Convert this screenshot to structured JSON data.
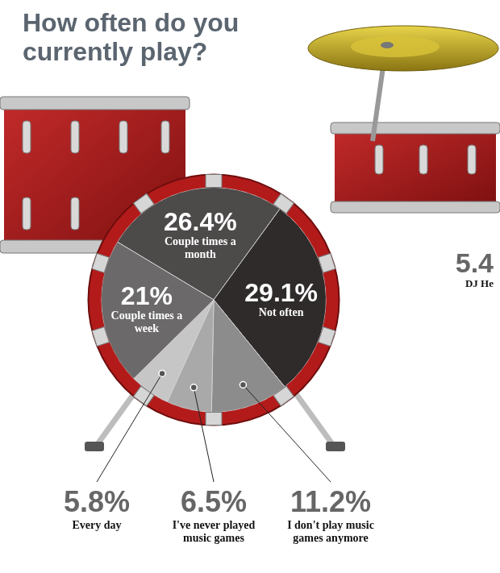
{
  "chart_data": {
    "type": "pie",
    "title": "How often do you currently play?",
    "categories": [
      "Couple times a month",
      "Not often",
      "I don't play music games anymore",
      "I've never played music games",
      "Every day",
      "Couple times a week"
    ],
    "values": [
      26.4,
      29.1,
      11.2,
      6.5,
      5.8,
      21
    ],
    "value_labels": [
      "26.4%",
      "29.1%",
      "11.2%",
      "6.5%",
      "5.8%",
      "21%"
    ],
    "colors": [
      "#4d4a4a",
      "#2f2b2b",
      "#8c8c8c",
      "#a9a9a9",
      "#c6c6c6",
      "#6b6969"
    ],
    "data_labels": true,
    "annotations": [
      "5.4",
      "DJ He"
    ]
  }
}
